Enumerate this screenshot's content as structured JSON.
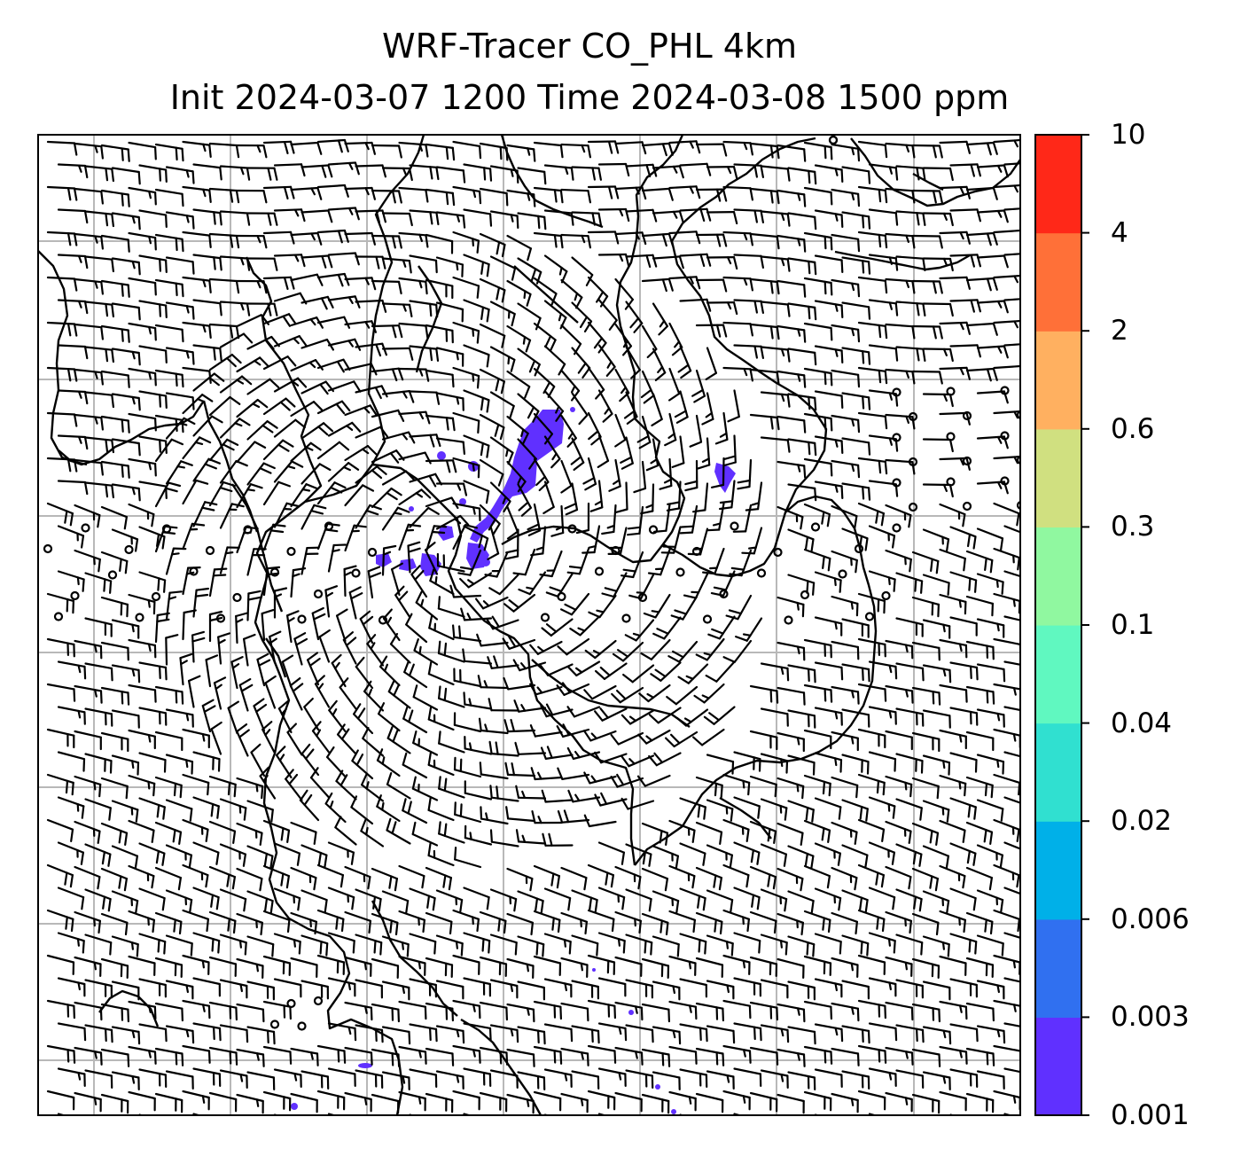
{
  "title": {
    "line1": "WRF-Tracer CO_PHL 4km",
    "line2": "Init 2024-03-07 1200 Time 2024-03-08 1500 ppm"
  },
  "colorbar": {
    "levels": [
      "0.001",
      "0.003",
      "0.006",
      "0.02",
      "0.04",
      "0.1",
      "0.3",
      "0.6",
      "2",
      "4",
      "10"
    ],
    "colors": [
      "#6030ff",
      "#3070f0",
      "#00b0e8",
      "#30e0d0",
      "#60f8c0",
      "#90f8a0",
      "#d0e080",
      "#ffb060",
      "#ff7038",
      "#ff2818"
    ]
  },
  "map": {
    "background": "#ffffff",
    "gridline_color": "#b8b8b8",
    "coastline_color": "#000000",
    "plume_color": "#6030ff",
    "barb_color": "#000000"
  }
}
